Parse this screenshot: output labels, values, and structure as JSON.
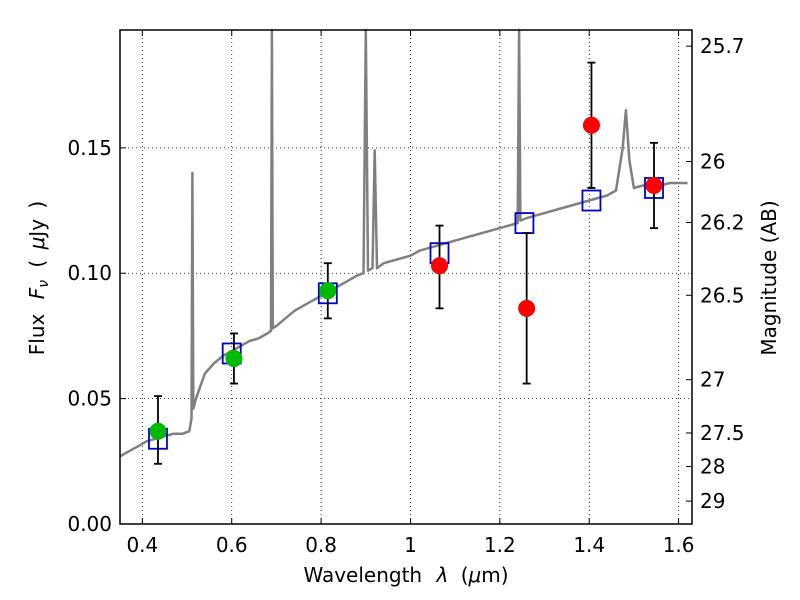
{
  "chart_data": {
    "type": "scatter",
    "title": "",
    "xlabel": {
      "prefix": "Wavelength",
      "symbol": "λ",
      "unit_open": "(",
      "unit_mu": "μ",
      "unit_rest": "m)"
    },
    "ylabel": {
      "prefix": "Flux",
      "symbol": "F",
      "subscript": "ν",
      "unit_open": "(",
      "unit_mu": "μ",
      "unit_rest": "Jy",
      "unit_close": ")"
    },
    "ylabel_right": "Magnitude (AB)",
    "xlim": [
      0.35,
      1.63
    ],
    "ylim": [
      0.0,
      0.197
    ],
    "grid": true,
    "x_ticks": [
      {
        "value": 0.4,
        "label": "0.4"
      },
      {
        "value": 0.6,
        "label": "0.6"
      },
      {
        "value": 0.8,
        "label": "0.8"
      },
      {
        "value": 1.0,
        "label": "1"
      },
      {
        "value": 1.2,
        "label": "1.2"
      },
      {
        "value": 1.4,
        "label": "1.4"
      },
      {
        "value": 1.6,
        "label": "1.6"
      }
    ],
    "y_ticks": [
      {
        "value": 0.0,
        "label": "0.00"
      },
      {
        "value": 0.05,
        "label": "0.05"
      },
      {
        "value": 0.1,
        "label": "0.10"
      },
      {
        "value": 0.15,
        "label": "0.15"
      }
    ],
    "right_ticks": [
      {
        "value": 25.7,
        "label": "25.7"
      },
      {
        "value": 26.0,
        "label": "26"
      },
      {
        "value": 26.2,
        "label": "26.2"
      },
      {
        "value": 26.5,
        "label": "26.5"
      },
      {
        "value": 27.0,
        "label": "27"
      },
      {
        "value": 27.5,
        "label": "27.5"
      },
      {
        "value": 28.0,
        "label": "28"
      },
      {
        "value": 29.0,
        "label": "29"
      }
    ],
    "series": [
      {
        "kind": "line",
        "color": "#808080",
        "points": [
          [
            0.35,
            0.027
          ],
          [
            0.37,
            0.029
          ],
          [
            0.39,
            0.031
          ],
          [
            0.41,
            0.033
          ],
          [
            0.43,
            0.034
          ],
          [
            0.45,
            0.035
          ],
          [
            0.47,
            0.036
          ],
          [
            0.49,
            0.036
          ],
          [
            0.505,
            0.037
          ],
          [
            0.51,
            0.042
          ],
          [
            0.512,
            0.14
          ],
          [
            0.514,
            0.046
          ],
          [
            0.52,
            0.05
          ],
          [
            0.53,
            0.055
          ],
          [
            0.54,
            0.06
          ],
          [
            0.55,
            0.062
          ],
          [
            0.56,
            0.064
          ],
          [
            0.58,
            0.067
          ],
          [
            0.6,
            0.069
          ],
          [
            0.62,
            0.071
          ],
          [
            0.64,
            0.073
          ],
          [
            0.66,
            0.074
          ],
          [
            0.68,
            0.076
          ],
          [
            0.688,
            0.077
          ],
          [
            0.69,
            0.197
          ],
          [
            0.692,
            0.078
          ],
          [
            0.7,
            0.079
          ],
          [
            0.72,
            0.082
          ],
          [
            0.74,
            0.085
          ],
          [
            0.76,
            0.087
          ],
          [
            0.78,
            0.089
          ],
          [
            0.8,
            0.091
          ],
          [
            0.82,
            0.093
          ],
          [
            0.84,
            0.095
          ],
          [
            0.86,
            0.097
          ],
          [
            0.88,
            0.099
          ],
          [
            0.895,
            0.1
          ],
          [
            0.9,
            0.197
          ],
          [
            0.905,
            0.101
          ],
          [
            0.915,
            0.102
          ],
          [
            0.92,
            0.149
          ],
          [
            0.925,
            0.102
          ],
          [
            0.94,
            0.104
          ],
          [
            0.96,
            0.105
          ],
          [
            0.98,
            0.106
          ],
          [
            1.0,
            0.107
          ],
          [
            1.02,
            0.109
          ],
          [
            1.04,
            0.11
          ],
          [
            1.06,
            0.111
          ],
          [
            1.08,
            0.112
          ],
          [
            1.1,
            0.113
          ],
          [
            1.12,
            0.114
          ],
          [
            1.14,
            0.115
          ],
          [
            1.16,
            0.116
          ],
          [
            1.18,
            0.117
          ],
          [
            1.2,
            0.118
          ],
          [
            1.22,
            0.119
          ],
          [
            1.24,
            0.12
          ],
          [
            1.243,
            0.197
          ],
          [
            1.246,
            0.121
          ],
          [
            1.26,
            0.122
          ],
          [
            1.28,
            0.123
          ],
          [
            1.3,
            0.124
          ],
          [
            1.32,
            0.125
          ],
          [
            1.34,
            0.126
          ],
          [
            1.36,
            0.127
          ],
          [
            1.38,
            0.128
          ],
          [
            1.4,
            0.129
          ],
          [
            1.42,
            0.13
          ],
          [
            1.44,
            0.131
          ],
          [
            1.46,
            0.133
          ],
          [
            1.475,
            0.15
          ],
          [
            1.482,
            0.165
          ],
          [
            1.49,
            0.145
          ],
          [
            1.5,
            0.134
          ],
          [
            1.52,
            0.135
          ],
          [
            1.54,
            0.135
          ],
          [
            1.56,
            0.135
          ],
          [
            1.58,
            0.136
          ],
          [
            1.6,
            0.136
          ],
          [
            1.62,
            0.136
          ]
        ]
      },
      {
        "kind": "open-square",
        "color": "#0000cc",
        "points": [
          [
            0.435,
            0.034
          ],
          [
            0.6,
            0.068
          ],
          [
            0.815,
            0.092
          ],
          [
            1.065,
            0.108
          ],
          [
            1.255,
            0.12
          ],
          [
            1.405,
            0.129
          ],
          [
            1.545,
            0.134
          ]
        ]
      },
      {
        "kind": "filled-circle",
        "color": "#00bb00",
        "points": [
          {
            "x": 0.435,
            "y": 0.037,
            "ylo": 0.024,
            "yhi": 0.051
          },
          {
            "x": 0.605,
            "y": 0.066,
            "ylo": 0.056,
            "yhi": 0.076
          },
          {
            "x": 0.815,
            "y": 0.093,
            "ylo": 0.082,
            "yhi": 0.104
          }
        ]
      },
      {
        "kind": "filled-circle",
        "color": "#ff0000",
        "points": [
          {
            "x": 1.065,
            "y": 0.103,
            "ylo": 0.086,
            "yhi": 0.119
          },
          {
            "x": 1.26,
            "y": 0.086,
            "ylo": 0.056,
            "yhi": 0.116
          },
          {
            "x": 1.405,
            "y": 0.159,
            "ylo": 0.134,
            "yhi": 0.184
          },
          {
            "x": 1.545,
            "y": 0.135,
            "ylo": 0.118,
            "yhi": 0.152
          }
        ]
      }
    ]
  }
}
